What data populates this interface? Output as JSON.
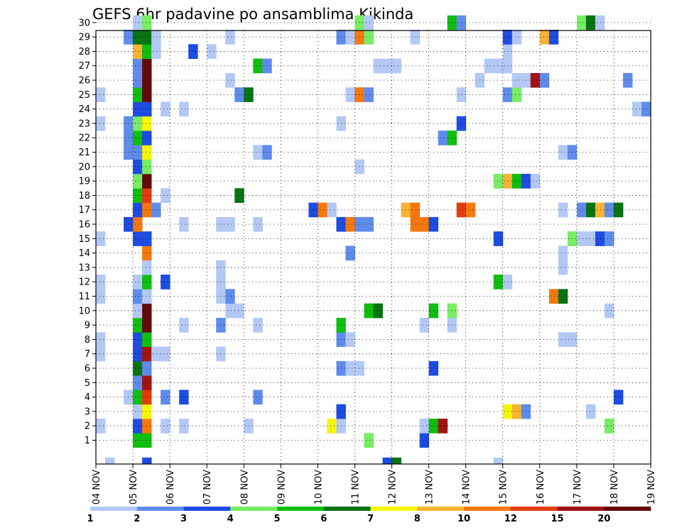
{
  "chart_data": {
    "type": "heatmap",
    "title": "GEFS 6hr padavine po ansamblima Kikinda",
    "x_tick_labels": [
      "04 NOV",
      "05 NOV",
      "06 NOV",
      "07 NOV",
      "08 NOV",
      "09 NOV",
      "10 NOV",
      "11 NOV",
      "12 NOV",
      "13 NOV",
      "14 NOV",
      "15 NOV",
      "16 NOV",
      "17 NOV",
      "18 NOV",
      "19 NOV"
    ],
    "y_tick_labels": [
      "1",
      "2",
      "3",
      "4",
      "5",
      "6",
      "7",
      "8",
      "9",
      "10",
      "11",
      "12",
      "13",
      "14",
      "15",
      "16",
      "17",
      "18",
      "19",
      "20",
      "21",
      "22",
      "23",
      "24",
      "25",
      "26",
      "27",
      "28",
      "29",
      "30"
    ],
    "members": 30,
    "steps_per_day": 4,
    "total_steps": 60,
    "grid": true,
    "colorbar": {
      "labels": [
        "1",
        "2",
        "3",
        "4",
        "5",
        "6",
        "7",
        "8",
        "10",
        "12",
        "15",
        "20"
      ],
      "colors": [
        "#b4c8f5",
        "#5f8ceb",
        "#1e4be1",
        "#78ec64",
        "#0fbe0f",
        "#0a7314",
        "#f5f50a",
        "#f5b432",
        "#f5780f",
        "#e13c0f",
        "#a01414",
        "#640a0a"
      ]
    },
    "cells": [
      [
        1,
        5,
        5
      ],
      [
        1,
        6,
        5
      ],
      [
        1,
        30,
        4
      ],
      [
        1,
        36,
        3
      ],
      [
        2,
        1,
        1
      ],
      [
        2,
        5,
        3
      ],
      [
        2,
        6,
        9
      ],
      [
        2,
        8,
        1
      ],
      [
        2,
        10,
        1
      ],
      [
        2,
        17,
        1
      ],
      [
        2,
        26,
        7
      ],
      [
        2,
        27,
        1
      ],
      [
        2,
        36,
        1
      ],
      [
        2,
        37,
        5
      ],
      [
        2,
        38,
        11
      ],
      [
        2,
        56,
        4
      ],
      [
        3,
        5,
        1
      ],
      [
        3,
        6,
        7
      ],
      [
        3,
        27,
        3
      ],
      [
        3,
        45,
        7
      ],
      [
        3,
        46,
        8
      ],
      [
        3,
        47,
        2
      ],
      [
        3,
        54,
        1
      ],
      [
        4,
        4,
        1
      ],
      [
        4,
        5,
        5
      ],
      [
        4,
        6,
        10
      ],
      [
        4,
        8,
        2
      ],
      [
        4,
        10,
        3
      ],
      [
        4,
        18,
        2
      ],
      [
        4,
        57,
        3
      ],
      [
        5,
        5,
        2
      ],
      [
        5,
        6,
        11
      ],
      [
        6,
        5,
        6
      ],
      [
        6,
        6,
        2
      ],
      [
        6,
        27,
        2
      ],
      [
        6,
        28,
        1
      ],
      [
        6,
        29,
        1
      ],
      [
        6,
        37,
        3
      ],
      [
        7,
        1,
        1
      ],
      [
        7,
        5,
        3
      ],
      [
        7,
        6,
        11
      ],
      [
        7,
        7,
        1
      ],
      [
        7,
        8,
        1
      ],
      [
        7,
        14,
        1
      ],
      [
        8,
        1,
        1
      ],
      [
        8,
        5,
        3
      ],
      [
        8,
        6,
        5
      ],
      [
        8,
        27,
        2
      ],
      [
        8,
        28,
        1
      ],
      [
        8,
        51,
        1
      ],
      [
        8,
        52,
        1
      ],
      [
        9,
        5,
        5
      ],
      [
        9,
        6,
        12
      ],
      [
        9,
        10,
        1
      ],
      [
        9,
        14,
        2
      ],
      [
        9,
        18,
        1
      ],
      [
        9,
        27,
        5
      ],
      [
        9,
        36,
        1
      ],
      [
        9,
        39,
        1
      ],
      [
        10,
        5,
        1
      ],
      [
        10,
        6,
        12
      ],
      [
        10,
        15,
        1
      ],
      [
        10,
        16,
        1
      ],
      [
        10,
        30,
        5
      ],
      [
        10,
        31,
        6
      ],
      [
        10,
        37,
        5
      ],
      [
        10,
        39,
        4
      ],
      [
        10,
        56,
        1
      ],
      [
        11,
        1,
        1
      ],
      [
        11,
        5,
        2
      ],
      [
        11,
        6,
        1
      ],
      [
        11,
        14,
        1
      ],
      [
        11,
        15,
        2
      ],
      [
        11,
        50,
        9
      ],
      [
        11,
        51,
        6
      ],
      [
        12,
        1,
        1
      ],
      [
        12,
        5,
        1
      ],
      [
        12,
        6,
        5
      ],
      [
        12,
        8,
        3
      ],
      [
        12,
        14,
        1
      ],
      [
        12,
        44,
        5
      ],
      [
        12,
        45,
        1
      ],
      [
        13,
        6,
        1
      ],
      [
        13,
        14,
        1
      ],
      [
        13,
        51,
        1
      ],
      [
        14,
        6,
        9
      ],
      [
        14,
        28,
        2
      ],
      [
        14,
        51,
        1
      ],
      [
        15,
        1,
        1
      ],
      [
        15,
        5,
        3
      ],
      [
        15,
        6,
        3
      ],
      [
        15,
        44,
        3
      ],
      [
        15,
        52,
        4
      ],
      [
        15,
        53,
        1
      ],
      [
        15,
        54,
        1
      ],
      [
        15,
        55,
        3
      ],
      [
        15,
        56,
        2
      ],
      [
        16,
        4,
        3
      ],
      [
        16,
        5,
        9
      ],
      [
        16,
        10,
        1
      ],
      [
        16,
        14,
        1
      ],
      [
        16,
        15,
        1
      ],
      [
        16,
        18,
        1
      ],
      [
        16,
        27,
        3
      ],
      [
        16,
        28,
        9
      ],
      [
        16,
        29,
        2
      ],
      [
        16,
        30,
        2
      ],
      [
        16,
        35,
        9
      ],
      [
        16,
        36,
        9
      ],
      [
        16,
        37,
        3
      ],
      [
        17,
        5,
        3
      ],
      [
        17,
        6,
        9
      ],
      [
        17,
        7,
        2
      ],
      [
        17,
        24,
        3
      ],
      [
        17,
        25,
        9
      ],
      [
        17,
        26,
        1
      ],
      [
        17,
        34,
        8
      ],
      [
        17,
        35,
        9
      ],
      [
        17,
        40,
        10
      ],
      [
        17,
        41,
        9
      ],
      [
        17,
        51,
        1
      ],
      [
        17,
        53,
        2
      ],
      [
        17,
        54,
        6
      ],
      [
        17,
        55,
        8
      ],
      [
        17,
        56,
        2
      ],
      [
        17,
        57,
        6
      ],
      [
        18,
        5,
        5
      ],
      [
        18,
        6,
        10
      ],
      [
        18,
        8,
        1
      ],
      [
        18,
        16,
        6
      ],
      [
        19,
        5,
        4
      ],
      [
        19,
        6,
        12
      ],
      [
        19,
        44,
        4
      ],
      [
        19,
        45,
        8
      ],
      [
        19,
        46,
        5
      ],
      [
        19,
        47,
        3
      ],
      [
        19,
        48,
        1
      ],
      [
        20,
        5,
        3
      ],
      [
        20,
        6,
        4
      ],
      [
        20,
        29,
        1
      ],
      [
        21,
        4,
        2
      ],
      [
        21,
        5,
        2
      ],
      [
        21,
        6,
        7
      ],
      [
        21,
        18,
        1
      ],
      [
        21,
        19,
        2
      ],
      [
        21,
        51,
        1
      ],
      [
        21,
        52,
        2
      ],
      [
        22,
        4,
        2
      ],
      [
        22,
        5,
        5
      ],
      [
        22,
        6,
        3
      ],
      [
        22,
        38,
        2
      ],
      [
        22,
        39,
        5
      ],
      [
        23,
        1,
        1
      ],
      [
        23,
        4,
        2
      ],
      [
        23,
        5,
        4
      ],
      [
        23,
        6,
        7
      ],
      [
        23,
        27,
        1
      ],
      [
        23,
        40,
        3
      ],
      [
        24,
        5,
        3
      ],
      [
        24,
        6,
        3
      ],
      [
        24,
        8,
        1
      ],
      [
        24,
        10,
        1
      ],
      [
        24,
        59,
        1
      ],
      [
        24,
        60,
        2
      ],
      [
        25,
        1,
        1
      ],
      [
        25,
        5,
        5
      ],
      [
        25,
        6,
        12
      ],
      [
        25,
        16,
        2
      ],
      [
        25,
        17,
        6
      ],
      [
        25,
        28,
        1
      ],
      [
        25,
        29,
        9
      ],
      [
        25,
        30,
        2
      ],
      [
        25,
        40,
        1
      ],
      [
        25,
        45,
        2
      ],
      [
        25,
        46,
        4
      ],
      [
        26,
        5,
        2
      ],
      [
        26,
        6,
        12
      ],
      [
        26,
        15,
        1
      ],
      [
        26,
        42,
        1
      ],
      [
        26,
        46,
        1
      ],
      [
        26,
        47,
        1
      ],
      [
        26,
        48,
        11
      ],
      [
        26,
        49,
        2
      ],
      [
        26,
        58,
        2
      ],
      [
        27,
        5,
        2
      ],
      [
        27,
        6,
        12
      ],
      [
        27,
        18,
        5
      ],
      [
        27,
        19,
        2
      ],
      [
        27,
        31,
        1
      ],
      [
        27,
        32,
        1
      ],
      [
        27,
        33,
        1
      ],
      [
        27,
        43,
        1
      ],
      [
        27,
        44,
        1
      ],
      [
        27,
        45,
        1
      ],
      [
        28,
        5,
        8
      ],
      [
        28,
        6,
        5
      ],
      [
        28,
        7,
        1
      ],
      [
        28,
        11,
        3
      ],
      [
        28,
        13,
        1
      ],
      [
        28,
        45,
        1
      ],
      [
        29,
        4,
        2
      ],
      [
        29,
        5,
        6
      ],
      [
        29,
        6,
        6
      ],
      [
        29,
        7,
        1
      ],
      [
        29,
        15,
        1
      ],
      [
        29,
        27,
        2
      ],
      [
        29,
        28,
        1
      ],
      [
        29,
        29,
        9
      ],
      [
        29,
        30,
        4
      ],
      [
        29,
        35,
        1
      ],
      [
        29,
        45,
        3
      ],
      [
        29,
        46,
        1
      ],
      [
        29,
        49,
        8
      ],
      [
        29,
        50,
        3
      ],
      [
        30,
        5,
        1
      ],
      [
        30,
        6,
        4
      ],
      [
        30,
        29,
        4
      ],
      [
        30,
        30,
        1
      ],
      [
        30,
        39,
        5
      ],
      [
        30,
        40,
        2
      ],
      [
        30,
        53,
        4
      ],
      [
        30,
        54,
        6
      ],
      [
        30,
        55,
        1
      ],
      [
        0,
        2,
        1
      ],
      [
        0,
        6,
        3
      ],
      [
        0,
        32,
        3
      ],
      [
        0,
        33,
        6
      ],
      [
        0,
        44,
        1
      ]
    ]
  }
}
